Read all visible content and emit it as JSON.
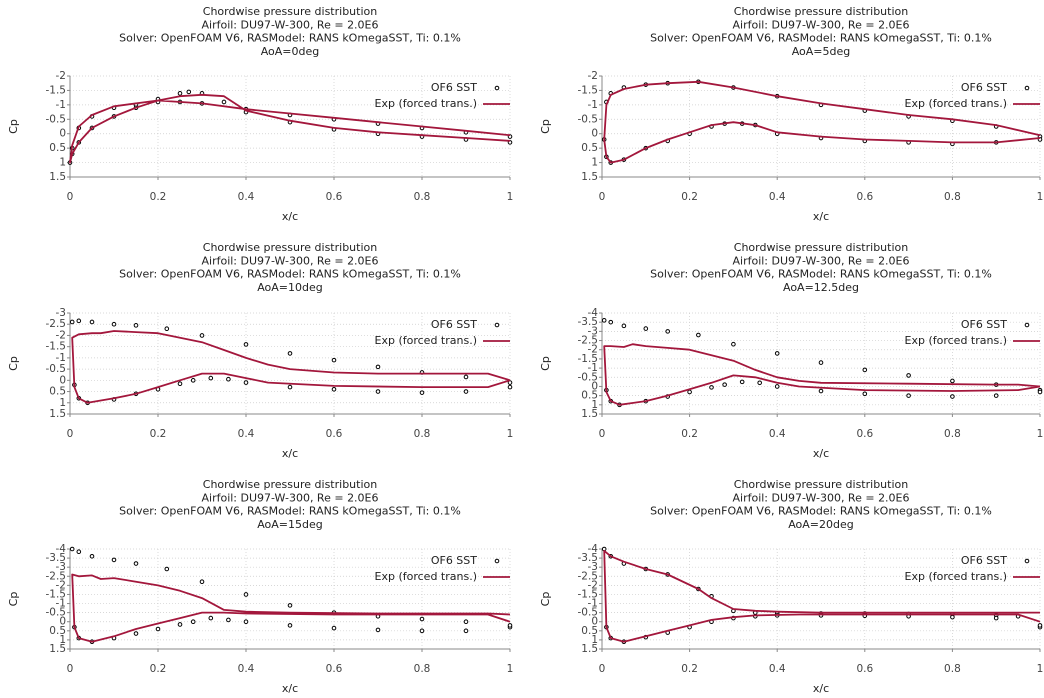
{
  "chart_data": [
    {
      "type": "line",
      "title_lines": [
        "Chordwise pressure distribution",
        "Airfoil: DU97-W-300, Re = 2.0E6",
        "Solver: OpenFOAM V6, RASModel: RANS kOmegaSST, Ti: 0.1%",
        "AoA=0deg"
      ],
      "xlabel": "x/c",
      "ylabel": "Cp",
      "xlim": [
        0,
        1
      ],
      "xticks": [
        0,
        0.2,
        0.4,
        0.6,
        0.8,
        1
      ],
      "ylim": [
        -2,
        1.5
      ],
      "y_reversed": true,
      "yticks": [
        -2,
        -1.5,
        -1,
        -0.5,
        0,
        0.5,
        1,
        1.5
      ],
      "grid": true,
      "legend": "upper right",
      "series": [
        {
          "name": "OF6 SST",
          "kind": "scatter",
          "color": "#000000",
          "x": [
            1,
            0.9,
            0.8,
            0.7,
            0.6,
            0.5,
            0.4,
            0.3,
            0.25,
            0.2,
            0.15,
            0.1,
            0.05,
            0.02,
            0.005,
            0,
            0.005,
            0.02,
            0.05,
            0.1,
            0.15,
            0.2,
            0.25,
            0.27,
            0.3,
            0.35,
            0.4,
            0.5,
            0.6,
            0.7,
            0.8,
            0.9,
            1
          ],
          "values": [
            0.1,
            -0.05,
            -0.2,
            -0.35,
            -0.5,
            -0.65,
            -0.85,
            -1.05,
            -1.1,
            -1.1,
            -1.0,
            -0.9,
            -0.6,
            -0.2,
            0.5,
            1.0,
            0.7,
            0.3,
            -0.2,
            -0.6,
            -0.9,
            -1.2,
            -1.4,
            -1.45,
            -1.4,
            -1.1,
            -0.75,
            -0.4,
            -0.15,
            0.0,
            0.1,
            0.2,
            0.3
          ]
        },
        {
          "name": "Exp (forced trans.)",
          "kind": "line",
          "color": "#a3173c",
          "x": [
            1,
            0.9,
            0.8,
            0.7,
            0.6,
            0.5,
            0.4,
            0.3,
            0.2,
            0.1,
            0.05,
            0.02,
            0.005,
            0,
            0.005,
            0.02,
            0.05,
            0.1,
            0.15,
            0.2,
            0.25,
            0.3,
            0.35,
            0.37,
            0.4,
            0.5,
            0.6,
            0.7,
            0.8,
            0.9,
            1
          ],
          "values": [
            0.05,
            -0.1,
            -0.25,
            -0.4,
            -0.55,
            -0.7,
            -0.85,
            -1.05,
            -1.15,
            -0.95,
            -0.65,
            -0.25,
            0.4,
            1.0,
            0.7,
            0.3,
            -0.2,
            -0.6,
            -0.9,
            -1.15,
            -1.3,
            -1.35,
            -1.3,
            -1.1,
            -0.8,
            -0.45,
            -0.2,
            -0.05,
            0.05,
            0.15,
            0.25
          ]
        }
      ]
    },
    {
      "type": "line",
      "title_lines": [
        "Chordwise pressure distribution",
        "Airfoil: DU97-W-300, Re = 2.0E6",
        "Solver: OpenFOAM V6, RASModel: RANS kOmegaSST, Ti: 0.1%",
        "AoA=5deg"
      ],
      "xlabel": "x/c",
      "ylabel": "Cp",
      "xlim": [
        0,
        1
      ],
      "xticks": [
        0,
        0.2,
        0.4,
        0.6,
        0.8,
        1
      ],
      "ylim": [
        -2,
        1.5
      ],
      "y_reversed": true,
      "yticks": [
        -2,
        -1.5,
        -1,
        -0.5,
        0,
        0.5,
        1,
        1.5
      ],
      "grid": true,
      "legend": "upper right",
      "series": [
        {
          "name": "OF6 SST",
          "kind": "scatter",
          "color": "#000000",
          "x": [
            1,
            0.9,
            0.8,
            0.7,
            0.6,
            0.5,
            0.4,
            0.3,
            0.22,
            0.15,
            0.1,
            0.05,
            0.02,
            0.01,
            0.005,
            0.01,
            0.02,
            0.05,
            0.1,
            0.15,
            0.2,
            0.25,
            0.28,
            0.32,
            0.35,
            0.4,
            0.5,
            0.6,
            0.7,
            0.8,
            0.9,
            1
          ],
          "values": [
            0.1,
            -0.25,
            -0.45,
            -0.6,
            -0.8,
            -1.0,
            -1.3,
            -1.6,
            -1.8,
            -1.75,
            -1.7,
            -1.6,
            -1.4,
            -1.1,
            0.2,
            0.8,
            1.0,
            0.9,
            0.5,
            0.25,
            0.0,
            -0.25,
            -0.35,
            -0.35,
            -0.3,
            0.0,
            0.15,
            0.25,
            0.3,
            0.35,
            0.3,
            0.2
          ]
        },
        {
          "name": "Exp (forced trans.)",
          "kind": "line",
          "color": "#a3173c",
          "x": [
            1,
            0.9,
            0.8,
            0.7,
            0.6,
            0.5,
            0.4,
            0.3,
            0.22,
            0.15,
            0.1,
            0.05,
            0.02,
            0.01,
            0.005,
            0.01,
            0.02,
            0.05,
            0.1,
            0.15,
            0.2,
            0.25,
            0.3,
            0.35,
            0.4,
            0.5,
            0.6,
            0.7,
            0.8,
            0.9,
            1
          ],
          "values": [
            0.05,
            -0.3,
            -0.5,
            -0.65,
            -0.85,
            -1.05,
            -1.3,
            -1.6,
            -1.8,
            -1.75,
            -1.7,
            -1.55,
            -1.35,
            -1.0,
            0.2,
            0.8,
            1.0,
            0.9,
            0.5,
            0.2,
            -0.05,
            -0.3,
            -0.4,
            -0.3,
            -0.05,
            0.1,
            0.2,
            0.25,
            0.3,
            0.3,
            0.15
          ]
        }
      ]
    },
    {
      "type": "line",
      "title_lines": [
        "Chordwise pressure distribution",
        "Airfoil: DU97-W-300, Re = 2.0E6",
        "Solver: OpenFOAM V6, RASModel: RANS kOmegaSST, Ti: 0.1%",
        "AoA=10deg"
      ],
      "xlabel": "x/c",
      "ylabel": "Cp",
      "xlim": [
        0,
        1
      ],
      "xticks": [
        0,
        0.2,
        0.4,
        0.6,
        0.8,
        1
      ],
      "ylim": [
        -3,
        1.5
      ],
      "y_reversed": true,
      "yticks": [
        -3,
        -2.5,
        -2,
        -1.5,
        -1,
        -0.5,
        0,
        0.5,
        1,
        1.5
      ],
      "grid": true,
      "legend": "upper right",
      "series": [
        {
          "name": "OF6 SST",
          "kind": "scatter",
          "color": "#000000",
          "x": [
            1,
            0.9,
            0.8,
            0.7,
            0.6,
            0.5,
            0.4,
            0.3,
            0.22,
            0.15,
            0.1,
            0.05,
            0.02,
            0.005,
            0.01,
            0.02,
            0.04,
            0.1,
            0.15,
            0.2,
            0.25,
            0.28,
            0.32,
            0.36,
            0.4,
            0.5,
            0.6,
            0.7,
            0.8,
            0.9,
            1
          ],
          "values": [
            0.1,
            -0.15,
            -0.35,
            -0.6,
            -0.9,
            -1.2,
            -1.6,
            -2.0,
            -2.3,
            -2.45,
            -2.5,
            -2.6,
            -2.65,
            -2.6,
            0.2,
            0.8,
            1.0,
            0.85,
            0.6,
            0.4,
            0.15,
            0.0,
            -0.1,
            -0.05,
            0.1,
            0.3,
            0.4,
            0.5,
            0.55,
            0.5,
            0.3
          ]
        },
        {
          "name": "Exp (forced trans.)",
          "kind": "line",
          "color": "#a3173c",
          "x": [
            1,
            0.95,
            0.9,
            0.8,
            0.7,
            0.6,
            0.5,
            0.45,
            0.4,
            0.35,
            0.3,
            0.2,
            0.15,
            0.1,
            0.07,
            0.05,
            0.02,
            0.005,
            0.01,
            0.02,
            0.04,
            0.1,
            0.15,
            0.2,
            0.25,
            0.3,
            0.35,
            0.4,
            0.45,
            0.6,
            0.8,
            0.95,
            1
          ],
          "values": [
            0.0,
            -0.3,
            -0.3,
            -0.3,
            -0.3,
            -0.35,
            -0.5,
            -0.7,
            -1.0,
            -1.35,
            -1.7,
            -2.1,
            -2.15,
            -2.2,
            -2.1,
            -2.1,
            -2.05,
            -1.9,
            0.3,
            0.8,
            1.0,
            0.8,
            0.6,
            0.3,
            0.0,
            -0.3,
            -0.3,
            -0.1,
            0.1,
            0.25,
            0.3,
            0.3,
            0.0
          ]
        }
      ]
    },
    {
      "type": "line",
      "title_lines": [
        "Chordwise pressure distribution",
        "Airfoil: DU97-W-300, Re = 2.0E6",
        "Solver: OpenFOAM V6, RASModel: RANS kOmegaSST, Ti: 0.1%",
        "AoA=12.5deg"
      ],
      "xlabel": "x/c",
      "ylabel": "Cp",
      "xlim": [
        0,
        1
      ],
      "xticks": [
        0,
        0.2,
        0.4,
        0.6,
        0.8,
        1
      ],
      "ylim": [
        -4,
        1.5
      ],
      "y_reversed": true,
      "yticks": [
        -4,
        -3.5,
        -3,
        -2.5,
        -2,
        -1.5,
        -1,
        -0.5,
        0,
        0.5,
        1,
        1.5
      ],
      "grid": true,
      "legend": "upper right",
      "series": [
        {
          "name": "OF6 SST",
          "kind": "scatter",
          "color": "#000000",
          "x": [
            1,
            0.9,
            0.8,
            0.7,
            0.6,
            0.5,
            0.4,
            0.3,
            0.22,
            0.15,
            0.1,
            0.05,
            0.02,
            0.005,
            0.01,
            0.02,
            0.04,
            0.1,
            0.15,
            0.2,
            0.25,
            0.28,
            0.32,
            0.36,
            0.4,
            0.5,
            0.6,
            0.7,
            0.8,
            0.9,
            1
          ],
          "values": [
            0.2,
            -0.1,
            -0.3,
            -0.6,
            -0.9,
            -1.3,
            -1.8,
            -2.3,
            -2.8,
            -3.0,
            -3.15,
            -3.3,
            -3.5,
            -3.6,
            0.2,
            0.8,
            1.0,
            0.8,
            0.55,
            0.3,
            0.05,
            -0.1,
            -0.25,
            -0.2,
            0.0,
            0.25,
            0.4,
            0.5,
            0.55,
            0.5,
            0.3
          ]
        },
        {
          "name": "Exp (forced trans.)",
          "kind": "line",
          "color": "#a3173c",
          "x": [
            1,
            0.95,
            0.9,
            0.7,
            0.5,
            0.45,
            0.4,
            0.35,
            0.3,
            0.2,
            0.15,
            0.1,
            0.07,
            0.05,
            0.02,
            0.005,
            0.01,
            0.02,
            0.04,
            0.1,
            0.15,
            0.2,
            0.25,
            0.3,
            0.35,
            0.4,
            0.45,
            0.6,
            0.8,
            0.95,
            1
          ],
          "values": [
            0.0,
            -0.1,
            -0.1,
            -0.15,
            -0.2,
            -0.3,
            -0.5,
            -0.9,
            -1.4,
            -2.0,
            -2.1,
            -2.2,
            -2.3,
            -2.15,
            -2.2,
            -2.2,
            0.3,
            0.8,
            1.0,
            0.8,
            0.5,
            0.15,
            -0.2,
            -0.6,
            -0.5,
            -0.2,
            0.0,
            0.2,
            0.25,
            0.2,
            0.0
          ]
        }
      ]
    },
    {
      "type": "line",
      "title_lines": [
        "Chordwise pressure distribution",
        "Airfoil: DU97-W-300, Re = 2.0E6",
        "Solver: OpenFOAM V6, RASModel: RANS kOmegaSST, Ti: 0.1%",
        "AoA=15deg"
      ],
      "xlabel": "x/c",
      "ylabel": "Cp",
      "xlim": [
        0,
        1
      ],
      "xticks": [
        0,
        0.2,
        0.4,
        0.6,
        0.8,
        1
      ],
      "ylim": [
        -4,
        1.5
      ],
      "y_reversed": true,
      "yticks": [
        -4,
        -3.5,
        -3,
        -2.5,
        -2,
        -1.5,
        -1,
        -0.5,
        0,
        0.5,
        1,
        1.5
      ],
      "grid": true,
      "legend": "upper right",
      "series": [
        {
          "name": "OF6 SST",
          "kind": "scatter",
          "color": "#000000",
          "x": [
            1,
            0.9,
            0.8,
            0.7,
            0.6,
            0.5,
            0.4,
            0.3,
            0.22,
            0.15,
            0.1,
            0.05,
            0.02,
            0.005,
            0.01,
            0.02,
            0.05,
            0.1,
            0.15,
            0.2,
            0.25,
            0.28,
            0.32,
            0.36,
            0.4,
            0.5,
            0.6,
            0.7,
            0.8,
            0.9,
            1
          ],
          "values": [
            0.3,
            0.0,
            -0.15,
            -0.3,
            -0.5,
            -0.9,
            -1.5,
            -2.2,
            -2.9,
            -3.2,
            -3.4,
            -3.6,
            -3.85,
            -4.0,
            0.3,
            0.9,
            1.1,
            0.9,
            0.65,
            0.4,
            0.15,
            0.0,
            -0.2,
            -0.1,
            0.0,
            0.2,
            0.35,
            0.45,
            0.5,
            0.5,
            0.2
          ]
        },
        {
          "name": "Exp (forced trans.)",
          "kind": "line",
          "color": "#a3173c",
          "x": [
            1,
            0.95,
            0.9,
            0.7,
            0.5,
            0.4,
            0.35,
            0.3,
            0.25,
            0.2,
            0.15,
            0.1,
            0.07,
            0.05,
            0.02,
            0.005,
            0.01,
            0.02,
            0.05,
            0.1,
            0.15,
            0.2,
            0.25,
            0.3,
            0.35,
            0.4,
            0.6,
            0.8,
            0.95,
            1
          ],
          "values": [
            -0.4,
            -0.45,
            -0.45,
            -0.45,
            -0.5,
            -0.55,
            -0.65,
            -1.3,
            -1.7,
            -2.0,
            -2.2,
            -2.4,
            -2.35,
            -2.55,
            -2.5,
            -2.6,
            0.3,
            0.9,
            1.1,
            0.8,
            0.4,
            0.1,
            -0.2,
            -0.5,
            -0.5,
            -0.45,
            -0.4,
            -0.4,
            -0.4,
            0.0
          ]
        }
      ]
    },
    {
      "type": "line",
      "title_lines": [
        "Chordwise pressure distribution",
        "Airfoil: DU97-W-300, Re = 2.0E6",
        "Solver: OpenFOAM V6, RASModel: RANS kOmegaSST, Ti: 0.1%",
        "AoA=20deg"
      ],
      "xlabel": "x/c",
      "ylabel": "Cp",
      "xlim": [
        0,
        1
      ],
      "xticks": [
        0,
        0.2,
        0.4,
        0.6,
        0.8,
        1
      ],
      "ylim": [
        -4,
        1.5
      ],
      "y_reversed": true,
      "yticks": [
        -4,
        -3.5,
        -3,
        -2.5,
        -2,
        -1.5,
        -1,
        -0.5,
        0,
        0.5,
        1,
        1.5
      ],
      "grid": true,
      "legend": "upper right",
      "series": [
        {
          "name": "OF6 SST",
          "kind": "scatter",
          "color": "#000000",
          "x": [
            1,
            0.95,
            0.9,
            0.8,
            0.7,
            0.6,
            0.5,
            0.4,
            0.35,
            0.3,
            0.25,
            0.22,
            0.15,
            0.1,
            0.05,
            0.02,
            0.005,
            0.01,
            0.02,
            0.05,
            0.1,
            0.15,
            0.2,
            0.25,
            0.3,
            0.35,
            0.4,
            0.5,
            0.6,
            0.7,
            0.8,
            0.9,
            1
          ],
          "values": [
            0.3,
            -0.3,
            -0.35,
            -0.4,
            -0.42,
            -0.45,
            -0.45,
            -0.45,
            -0.5,
            -0.6,
            -1.4,
            -1.8,
            -2.6,
            -2.9,
            -3.2,
            -3.6,
            -4.0,
            0.3,
            0.9,
            1.1,
            0.85,
            0.6,
            0.3,
            0.0,
            -0.2,
            -0.3,
            -0.35,
            -0.35,
            -0.33,
            -0.3,
            -0.25,
            -0.2,
            0.2
          ]
        },
        {
          "name": "Exp (forced trans.)",
          "kind": "line",
          "color": "#a3173c",
          "x": [
            1,
            0.95,
            0.9,
            0.7,
            0.5,
            0.4,
            0.35,
            0.3,
            0.25,
            0.22,
            0.15,
            0.1,
            0.05,
            0.02,
            0.005,
            0.01,
            0.02,
            0.05,
            0.1,
            0.15,
            0.2,
            0.25,
            0.3,
            0.35,
            0.45,
            0.6,
            0.8,
            0.95,
            1
          ],
          "values": [
            -0.5,
            -0.5,
            -0.5,
            -0.5,
            -0.5,
            -0.55,
            -0.6,
            -0.7,
            -1.3,
            -1.8,
            -2.6,
            -2.9,
            -3.3,
            -3.6,
            -3.9,
            0.3,
            0.9,
            1.1,
            0.8,
            0.5,
            0.2,
            -0.1,
            -0.25,
            -0.35,
            -0.4,
            -0.4,
            -0.4,
            -0.4,
            0.0
          ]
        }
      ]
    }
  ]
}
